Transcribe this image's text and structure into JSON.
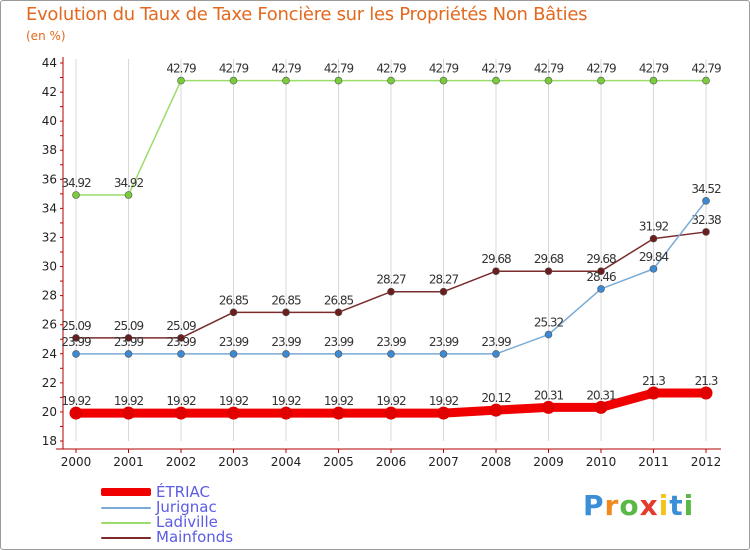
{
  "header": {
    "title": "Evolution du Taux de Taxe Foncière sur les Propriétés Non Bâties",
    "unit": "(en %)"
  },
  "logo": {
    "text": "Proxiti",
    "colors": [
      "#3a8fd6",
      "#f08a1c",
      "#58b947",
      "#e33b2e",
      "#f2c31b",
      "#3a8fd6",
      "#58b947"
    ]
  },
  "chart_data": {
    "type": "line",
    "title": "Evolution du Taux de Taxe Foncière sur les Propriétés Non Bâties",
    "ylabel": "(en %)",
    "xlabel": "",
    "ylim": [
      18,
      44
    ],
    "yticks": [
      18,
      20,
      22,
      24,
      26,
      28,
      30,
      32,
      34,
      36,
      38,
      40,
      42,
      44
    ],
    "categories": [
      "2000",
      "2001",
      "2002",
      "2003",
      "2004",
      "2005",
      "2006",
      "2007",
      "2008",
      "2009",
      "2010",
      "2011",
      "2012"
    ],
    "series": [
      {
        "name": "ÉTRIAC",
        "color": "#f00000",
        "marker": "#e00000",
        "bold": true,
        "values": [
          19.92,
          19.92,
          19.92,
          19.92,
          19.92,
          19.92,
          19.92,
          19.92,
          20.12,
          20.31,
          20.31,
          21.3,
          21.3
        ],
        "labels": [
          "19.92",
          "19.92",
          "19.92",
          "19.92",
          "19.92",
          "19.92",
          "19.92",
          "19.92",
          "20.12",
          "20.31",
          "20.31",
          "21.3",
          "21.3"
        ]
      },
      {
        "name": "Jurignac",
        "color": "#7aaad6",
        "marker": "#3a8ad6",
        "bold": false,
        "values": [
          23.99,
          23.99,
          23.99,
          23.99,
          23.99,
          23.99,
          23.99,
          23.99,
          23.99,
          25.32,
          28.46,
          29.84,
          34.52
        ],
        "labels": [
          "23.99",
          "23.99",
          "23.99",
          "23.99",
          "23.99",
          "23.99",
          "23.99",
          "23.99",
          "23.99",
          "25.32",
          "28.46",
          "29.84",
          "34.52"
        ]
      },
      {
        "name": "Ladiville",
        "color": "#9cdc6a",
        "marker": "#7acc3a",
        "bold": false,
        "values": [
          34.92,
          34.92,
          42.79,
          42.79,
          42.79,
          42.79,
          42.79,
          42.79,
          42.79,
          42.79,
          42.79,
          42.79,
          42.79
        ],
        "labels": [
          "34.92",
          "34.92",
          "42.79",
          "42.79",
          "42.79",
          "42.79",
          "42.79",
          "42.79",
          "42.79",
          "42.79",
          "42.79",
          "42.79",
          "42.79"
        ]
      },
      {
        "name": "Mainfonds",
        "color": "#7a2b2b",
        "marker": "#6a1e1e",
        "bold": false,
        "values": [
          25.09,
          25.09,
          25.09,
          26.85,
          26.85,
          26.85,
          28.27,
          28.27,
          29.68,
          29.68,
          29.68,
          31.92,
          32.38
        ],
        "labels": [
          "25.09",
          "25.09",
          "25.09",
          "26.85",
          "26.85",
          "26.85",
          "28.27",
          "28.27",
          "29.68",
          "29.68",
          "29.68",
          "31.92",
          "32.38"
        ]
      }
    ]
  }
}
